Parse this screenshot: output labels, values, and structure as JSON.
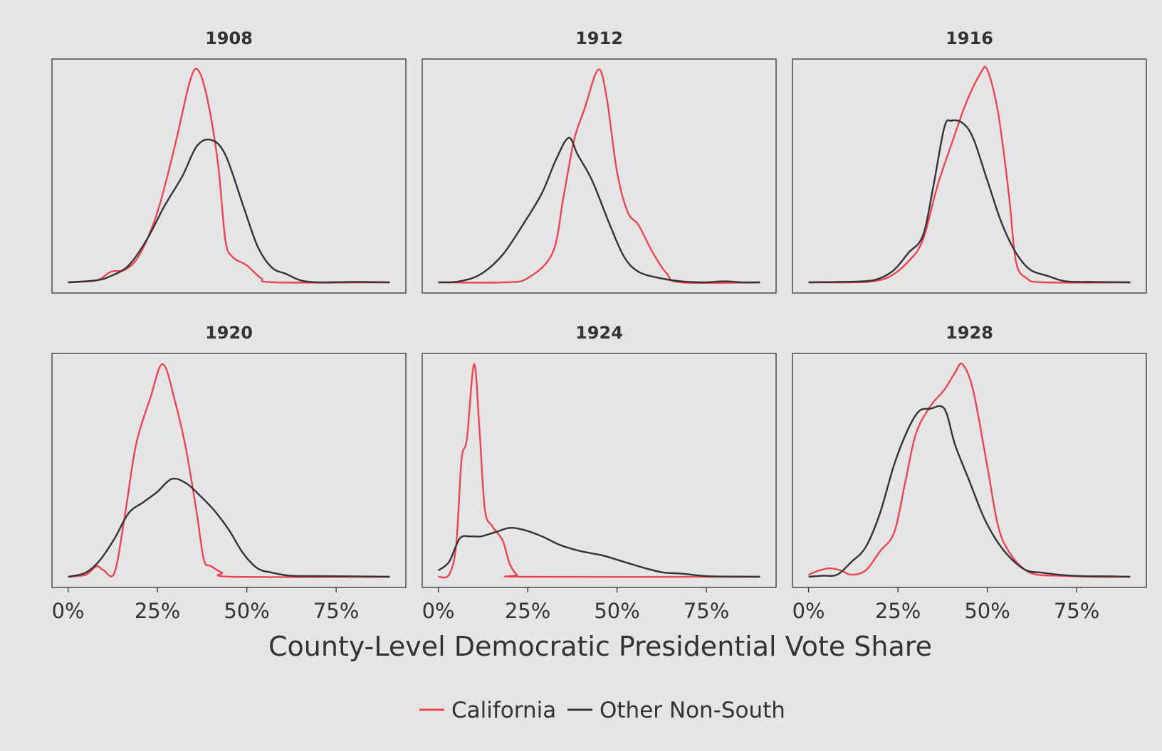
{
  "colors": {
    "background": "#e5e5e5",
    "panel_border": "#333333",
    "text": "#333333"
  },
  "chart_data": {
    "type": "line",
    "subtype": "density-facets",
    "xlabel": "County-Level Democratic Presidential Vote Share",
    "x_ticks": [
      "0%",
      "25%",
      "50%",
      "75%"
    ],
    "x_tick_values": [
      0,
      25,
      50,
      75
    ],
    "xlim": [
      -4.5,
      94.5
    ],
    "ylim": [
      -0.05,
      1.05
    ],
    "y_axis": "unlabeled (relative density)",
    "legend": {
      "position": "bottom",
      "entries": [
        {
          "label": "California",
          "color": "#ee4450"
        },
        {
          "label": "Other Non-South",
          "color": "#333333"
        }
      ]
    },
    "panels": [
      {
        "title": "1908",
        "series": [
          {
            "name": "California",
            "color": "#ee4450",
            "points": [
              [
                0,
                0
              ],
              [
                8,
                0.01
              ],
              [
                12,
                0.05
              ],
              [
                16,
                0.06
              ],
              [
                20,
                0.13
              ],
              [
                25,
                0.33
              ],
              [
                30,
                0.65
              ],
              [
                34,
                0.94
              ],
              [
                36.3,
                1.0
              ],
              [
                39,
                0.86
              ],
              [
                42,
                0.55
              ],
              [
                44,
                0.2
              ],
              [
                46,
                0.12
              ],
              [
                50,
                0.08
              ],
              [
                54,
                0.02
              ],
              [
                58,
                0
              ],
              [
                90,
                0
              ]
            ]
          },
          {
            "name": "Other Non-South",
            "color": "#333333",
            "points": [
              [
                0,
                0
              ],
              [
                8,
                0.01
              ],
              [
                12,
                0.03
              ],
              [
                17,
                0.08
              ],
              [
                22,
                0.2
              ],
              [
                27,
                0.36
              ],
              [
                32,
                0.5
              ],
              [
                36,
                0.64
              ],
              [
                40,
                0.67
              ],
              [
                44,
                0.6
              ],
              [
                49,
                0.36
              ],
              [
                53,
                0.17
              ],
              [
                57,
                0.07
              ],
              [
                61,
                0.04
              ],
              [
                65,
                0.01
              ],
              [
                70,
                0
              ],
              [
                80,
                0.002
              ],
              [
                90,
                0
              ]
            ]
          }
        ]
      },
      {
        "title": "1912",
        "series": [
          {
            "name": "California",
            "color": "#ee4450",
            "points": [
              [
                0,
                0
              ],
              [
                18,
                0
              ],
              [
                25,
                0.02
              ],
              [
                32,
                0.14
              ],
              [
                35,
                0.4
              ],
              [
                38,
                0.67
              ],
              [
                41,
                0.82
              ],
              [
                44.7,
                1.0
              ],
              [
                47,
                0.88
              ],
              [
                50,
                0.52
              ],
              [
                53,
                0.33
              ],
              [
                56,
                0.27
              ],
              [
                60,
                0.14
              ],
              [
                64,
                0.04
              ],
              [
                68,
                0
              ],
              [
                90,
                0
              ]
            ]
          },
          {
            "name": "Other Non-South",
            "color": "#333333",
            "points": [
              [
                0,
                0
              ],
              [
                6,
                0.005
              ],
              [
                12,
                0.04
              ],
              [
                18,
                0.13
              ],
              [
                24,
                0.28
              ],
              [
                29,
                0.42
              ],
              [
                33,
                0.58
              ],
              [
                36.5,
                0.68
              ],
              [
                39,
                0.6
              ],
              [
                43,
                0.48
              ],
              [
                48,
                0.27
              ],
              [
                52,
                0.12
              ],
              [
                56,
                0.05
              ],
              [
                62,
                0.02
              ],
              [
                68,
                0.005
              ],
              [
                74,
                0
              ],
              [
                80,
                0.005
              ],
              [
                85,
                0
              ],
              [
                90,
                0
              ]
            ]
          }
        ]
      },
      {
        "title": "1916",
        "series": [
          {
            "name": "California",
            "color": "#ee4450",
            "points": [
              [
                0,
                0
              ],
              [
                12,
                0
              ],
              [
                18,
                0.005
              ],
              [
                23,
                0.03
              ],
              [
                28,
                0.1
              ],
              [
                32,
                0.2
              ],
              [
                36,
                0.45
              ],
              [
                40,
                0.65
              ],
              [
                44,
                0.84
              ],
              [
                48,
                0.98
              ],
              [
                50,
                1.0
              ],
              [
                53,
                0.8
              ],
              [
                56,
                0.42
              ],
              [
                58,
                0.1
              ],
              [
                61,
                0.02
              ],
              [
                66,
                0
              ],
              [
                90,
                0
              ]
            ]
          },
          {
            "name": "Other Non-South",
            "color": "#333333",
            "points": [
              [
                0,
                0
              ],
              [
                15,
                0.005
              ],
              [
                20,
                0.02
              ],
              [
                24,
                0.06
              ],
              [
                28,
                0.14
              ],
              [
                32,
                0.22
              ],
              [
                35,
                0.46
              ],
              [
                38,
                0.73
              ],
              [
                40,
                0.76
              ],
              [
                43,
                0.75
              ],
              [
                46,
                0.68
              ],
              [
                50,
                0.48
              ],
              [
                54,
                0.28
              ],
              [
                58,
                0.14
              ],
              [
                62,
                0.06
              ],
              [
                67,
                0.03
              ],
              [
                72,
                0.005
              ],
              [
                80,
                0.002
              ],
              [
                90,
                0
              ]
            ]
          }
        ]
      },
      {
        "title": "1920",
        "series": [
          {
            "name": "California",
            "color": "#ee4450",
            "points": [
              [
                0,
                0
              ],
              [
                5,
                0.01
              ],
              [
                8,
                0.05
              ],
              [
                10,
                0.03
              ],
              [
                13,
                0.02
              ],
              [
                16,
                0.3
              ],
              [
                19,
                0.62
              ],
              [
                23,
                0.84
              ],
              [
                26.5,
                1.0
              ],
              [
                30,
                0.82
              ],
              [
                33,
                0.6
              ],
              [
                36,
                0.3
              ],
              [
                38,
                0.08
              ],
              [
                40,
                0.05
              ],
              [
                43,
                0.02
              ],
              [
                46,
                0
              ],
              [
                90,
                0
              ]
            ]
          },
          {
            "name": "Other Non-South",
            "color": "#333333",
            "points": [
              [
                0,
                0
              ],
              [
                5,
                0.02
              ],
              [
                9,
                0.08
              ],
              [
                13,
                0.18
              ],
              [
                17,
                0.3
              ],
              [
                21,
                0.35
              ],
              [
                25,
                0.4
              ],
              [
                29,
                0.46
              ],
              [
                33,
                0.44
              ],
              [
                37,
                0.38
              ],
              [
                41,
                0.31
              ],
              [
                45,
                0.22
              ],
              [
                49,
                0.11
              ],
              [
                53,
                0.04
              ],
              [
                57,
                0.02
              ],
              [
                62,
                0.005
              ],
              [
                70,
                0.003
              ],
              [
                80,
                0.002
              ],
              [
                90,
                0
              ]
            ]
          }
        ]
      },
      {
        "title": "1924",
        "series": [
          {
            "name": "California",
            "color": "#ee4450",
            "points": [
              [
                0,
                0
              ],
              [
                3,
                0.01
              ],
              [
                5,
                0.15
              ],
              [
                6.5,
                0.55
              ],
              [
                8,
                0.65
              ],
              [
                10,
                1.0
              ],
              [
                11.5,
                0.7
              ],
              [
                13,
                0.32
              ],
              [
                15,
                0.24
              ],
              [
                18,
                0.17
              ],
              [
                20,
                0.06
              ],
              [
                22,
                0.01
              ],
              [
                24,
                0
              ],
              [
                90,
                0
              ]
            ]
          },
          {
            "name": "Other Non-South",
            "color": "#333333",
            "points": [
              [
                0,
                0.03
              ],
              [
                3,
                0.07
              ],
              [
                6,
                0.18
              ],
              [
                9,
                0.19
              ],
              [
                12,
                0.19
              ],
              [
                16,
                0.21
              ],
              [
                20,
                0.23
              ],
              [
                24,
                0.22
              ],
              [
                29,
                0.19
              ],
              [
                34,
                0.15
              ],
              [
                40,
                0.12
              ],
              [
                46,
                0.1
              ],
              [
                52,
                0.07
              ],
              [
                58,
                0.04
              ],
              [
                63,
                0.02
              ],
              [
                68,
                0.015
              ],
              [
                75,
                0.003
              ],
              [
                82,
                0.001
              ],
              [
                90,
                0
              ]
            ]
          }
        ]
      },
      {
        "title": "1928",
        "series": [
          {
            "name": "California",
            "color": "#ee4450",
            "points": [
              [
                0,
                0.01
              ],
              [
                3,
                0.03
              ],
              [
                6,
                0.04
              ],
              [
                9,
                0.03
              ],
              [
                12,
                0.01
              ],
              [
                16,
                0.03
              ],
              [
                20,
                0.12
              ],
              [
                24,
                0.21
              ],
              [
                27,
                0.44
              ],
              [
                30,
                0.67
              ],
              [
                34,
                0.8
              ],
              [
                38,
                0.88
              ],
              [
                41,
                0.96
              ],
              [
                43,
                1.0
              ],
              [
                46,
                0.88
              ],
              [
                50,
                0.52
              ],
              [
                53,
                0.24
              ],
              [
                56,
                0.12
              ],
              [
                60,
                0.04
              ],
              [
                64,
                0.01
              ],
              [
                70,
                0.005
              ],
              [
                80,
                0
              ],
              [
                90,
                0
              ]
            ]
          },
          {
            "name": "Other Non-South",
            "color": "#333333",
            "points": [
              [
                0,
                0
              ],
              [
                4,
                0.005
              ],
              [
                8,
                0.01
              ],
              [
                12,
                0.07
              ],
              [
                16,
                0.14
              ],
              [
                20,
                0.3
              ],
              [
                24,
                0.53
              ],
              [
                28,
                0.7
              ],
              [
                31,
                0.78
              ],
              [
                34,
                0.79
              ],
              [
                38,
                0.79
              ],
              [
                41,
                0.62
              ],
              [
                45,
                0.45
              ],
              [
                49,
                0.28
              ],
              [
                53,
                0.16
              ],
              [
                57,
                0.08
              ],
              [
                61,
                0.03
              ],
              [
                65,
                0.02
              ],
              [
                70,
                0.01
              ],
              [
                76,
                0.003
              ],
              [
                85,
                0.002
              ],
              [
                90,
                0
              ]
            ]
          }
        ]
      }
    ]
  }
}
